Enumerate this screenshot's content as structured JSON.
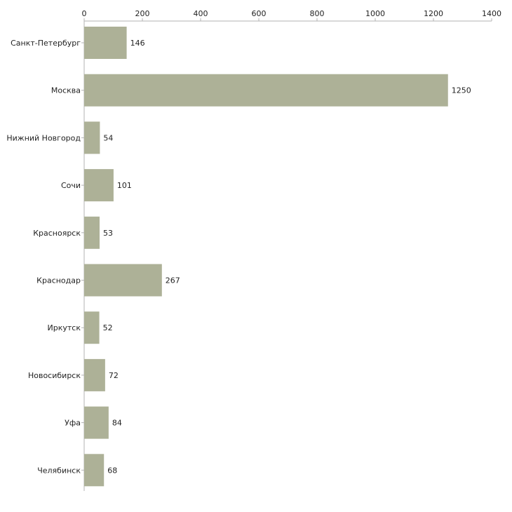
{
  "chart_data": {
    "type": "bar",
    "orientation": "horizontal",
    "title": "",
    "xlabel": "",
    "ylabel": "",
    "xlim": [
      0,
      1400
    ],
    "x_ticks": [
      0,
      200,
      400,
      600,
      800,
      1000,
      1200,
      1400
    ],
    "x_tick_labels": [
      "0",
      "200",
      "400",
      "600",
      "800",
      "1000",
      "1200",
      "1400"
    ],
    "axis_position": "top",
    "grid": false,
    "categories": [
      "Санкт-Петербург",
      "Москва",
      "Нижний Новгород",
      "Сочи",
      "Красноярск",
      "Краснодар",
      "Иркутск",
      "Новосибирск",
      "Уфа",
      "Челябинск"
    ],
    "values": [
      146,
      1250,
      54,
      101,
      53,
      267,
      52,
      72,
      84,
      68
    ],
    "value_labels": [
      "146",
      "1250",
      "54",
      "101",
      "53",
      "267",
      "52",
      "72",
      "84",
      "68"
    ],
    "bar_color": "#adb197"
  }
}
